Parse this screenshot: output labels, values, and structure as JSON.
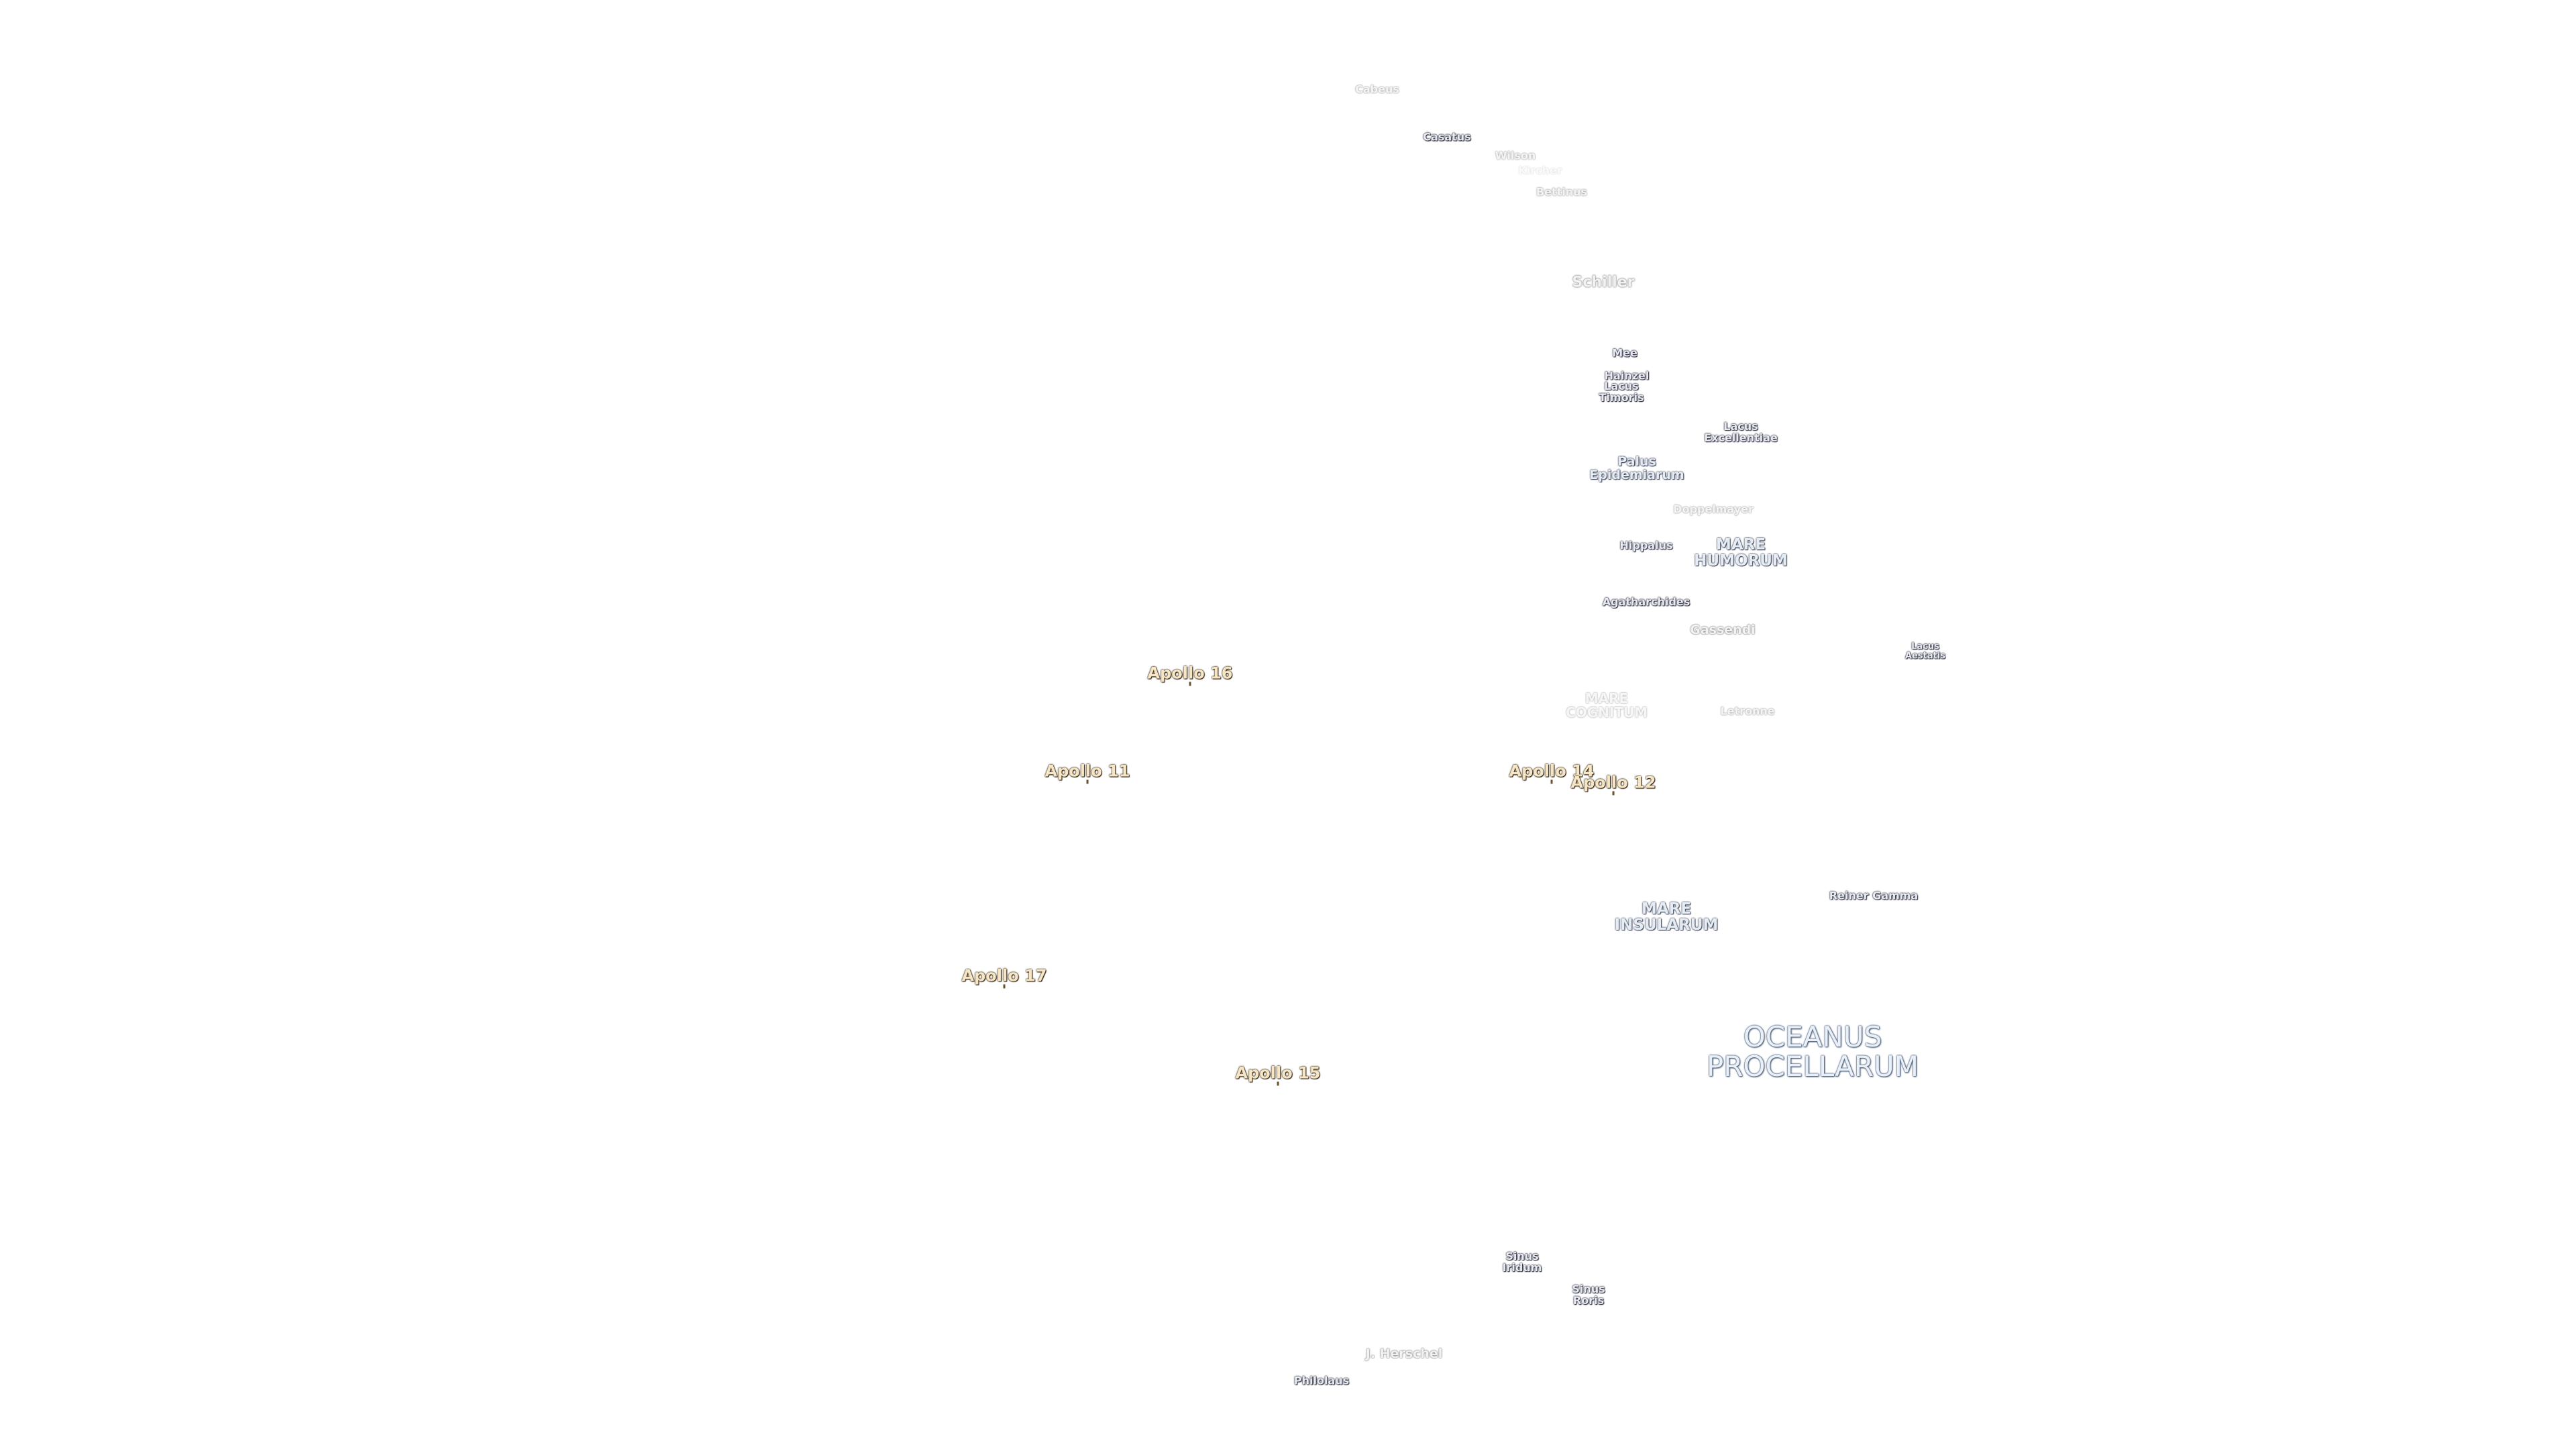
{
  "labels": [
    {
      "lines": [
        "Cabeus"
      ]
    },
    {
      "lines": [
        "Casatus"
      ]
    },
    {
      "lines": [
        "Wilson"
      ]
    },
    {
      "lines": [
        "Kircher"
      ]
    },
    {
      "lines": [
        "Bettinus"
      ]
    },
    {
      "lines": [
        "Schiller"
      ]
    },
    {
      "lines": [
        "Mee"
      ]
    },
    {
      "lines": [
        "Hainzel"
      ]
    },
    {
      "lines": [
        "Lacus",
        "Timoris"
      ]
    },
    {
      "lines": [
        "Lacus",
        "Excellentiae"
      ]
    },
    {
      "lines": [
        "Palus",
        "Epidemiarum"
      ]
    },
    {
      "lines": [
        "Doppelmayer"
      ]
    },
    {
      "lines": [
        "Hippalus"
      ]
    },
    {
      "lines": [
        "MARE",
        "HUMORUM"
      ]
    },
    {
      "lines": [
        "Agatharchides"
      ]
    },
    {
      "lines": [
        "Gassendi"
      ]
    },
    {
      "lines": [
        "Lacus",
        "Aestatis"
      ]
    },
    {
      "lines": [
        "Apollo 16"
      ]
    },
    {
      "lines": [
        "MARE",
        "COGNITUM"
      ]
    },
    {
      "lines": [
        "Letronne"
      ]
    },
    {
      "lines": [
        "Apollo 11"
      ]
    },
    {
      "lines": [
        "Apollo 14"
      ]
    },
    {
      "lines": [
        "Apollo 12"
      ]
    },
    {
      "lines": [
        "Reiner Gamma"
      ]
    },
    {
      "lines": [
        "MARE",
        "INSULARUM"
      ]
    },
    {
      "lines": [
        "Apollo 17"
      ]
    },
    {
      "lines": [
        "OCEANUS",
        "PROCELLARUM"
      ]
    },
    {
      "lines": [
        "Apollo 15"
      ]
    },
    {
      "lines": [
        "Sinus",
        "Iridum"
      ]
    },
    {
      "lines": [
        "Sinus",
        "Roris"
      ]
    },
    {
      "lines": [
        "J. Herschel"
      ]
    },
    {
      "lines": [
        "Philolaus"
      ]
    }
  ]
}
